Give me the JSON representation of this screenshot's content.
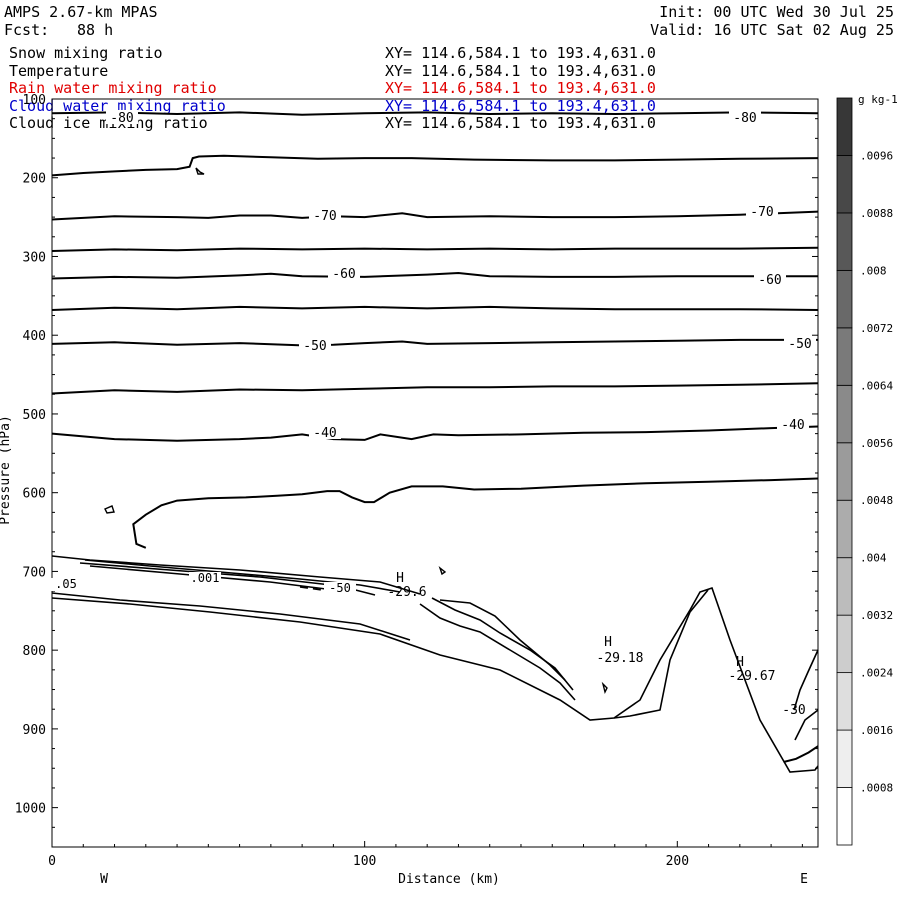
{
  "header": {
    "model": "AMPS 2.67-km MPAS",
    "fcst_label": "Fcst:",
    "fcst_value": "88 h",
    "init": "Init: 00 UTC Wed 30 Jul 25",
    "valid": "Valid: 16 UTC Sat 02 Aug 25"
  },
  "fields": [
    {
      "name": "Snow mixing ratio",
      "xy": "XY= 114.6,584.1 to 193.4,631.0",
      "color": "#000000"
    },
    {
      "name": "Temperature",
      "xy": "XY= 114.6,584.1 to 193.4,631.0",
      "color": "#000000"
    },
    {
      "name": "Rain water mixing ratio",
      "xy": "XY= 114.6,584.1 to 193.4,631.0",
      "color": "#e00000"
    },
    {
      "name": "Cloud water mixing ratio",
      "xy": "XY= 114.6,584.1 to 193.4,631.0",
      "color": "#0000cc"
    },
    {
      "name": "Cloud ice mixing ratio",
      "xy": "XY= 114.6,584.1 to 193.4,631.0",
      "color": "#000000"
    }
  ],
  "chart_data": {
    "type": "contour cross-section",
    "xlabel": "Distance (km)",
    "ylabel": "Pressure (hPa)",
    "xlim": [
      0,
      245
    ],
    "ylim": [
      1050,
      100
    ],
    "x_ticks": [
      0,
      100,
      200
    ],
    "y_ticks": [
      100,
      200,
      300,
      400,
      500,
      600,
      700,
      800,
      900,
      1000
    ],
    "left_end": "W",
    "right_end": "E",
    "temperature_contours": [
      {
        "value": -80,
        "labels": [
          "-80",
          "-80"
        ],
        "points": [
          [
            0,
            118
          ],
          [
            20,
            117
          ],
          [
            40,
            119
          ],
          [
            60,
            117
          ],
          [
            80,
            120
          ],
          [
            100,
            118
          ],
          [
            120,
            117
          ],
          [
            140,
            119
          ],
          [
            160,
            118
          ],
          [
            180,
            119
          ],
          [
            200,
            118
          ],
          [
            220,
            117
          ],
          [
            245,
            118
          ]
        ]
      },
      {
        "value": -75,
        "labels": [],
        "points": [
          [
            0,
            197
          ],
          [
            10,
            194
          ],
          [
            20,
            192
          ],
          [
            30,
            190
          ],
          [
            40,
            189
          ],
          [
            44,
            186
          ],
          [
            45,
            175
          ],
          [
            47,
            173
          ],
          [
            55,
            172
          ],
          [
            70,
            174
          ],
          [
            85,
            176
          ],
          [
            100,
            175
          ],
          [
            115,
            175
          ],
          [
            135,
            177
          ],
          [
            160,
            178
          ],
          [
            180,
            178
          ],
          [
            200,
            177
          ],
          [
            220,
            176
          ],
          [
            245,
            175
          ]
        ]
      },
      {
        "value": -70,
        "labels": [
          "-70",
          "-70"
        ],
        "points": [
          [
            0,
            253
          ],
          [
            20,
            249
          ],
          [
            40,
            250
          ],
          [
            50,
            251
          ],
          [
            60,
            248
          ],
          [
            70,
            248
          ],
          [
            80,
            251
          ],
          [
            90,
            249
          ],
          [
            100,
            250
          ],
          [
            112,
            245
          ],
          [
            120,
            250
          ],
          [
            140,
            249
          ],
          [
            160,
            250
          ],
          [
            180,
            250
          ],
          [
            200,
            249
          ],
          [
            220,
            247
          ],
          [
            245,
            243
          ]
        ]
      },
      {
        "value": -65,
        "labels": [],
        "points": [
          [
            0,
            293
          ],
          [
            20,
            291
          ],
          [
            40,
            292
          ],
          [
            60,
            290
          ],
          [
            80,
            291
          ],
          [
            100,
            290
          ],
          [
            120,
            291
          ],
          [
            140,
            290
          ],
          [
            160,
            291
          ],
          [
            180,
            290
          ],
          [
            200,
            290
          ],
          [
            220,
            290
          ],
          [
            245,
            289
          ]
        ]
      },
      {
        "value": -60,
        "labels": [
          "-60",
          "-60"
        ],
        "points": [
          [
            0,
            328
          ],
          [
            20,
            326
          ],
          [
            40,
            327
          ],
          [
            60,
            324
          ],
          [
            70,
            322
          ],
          [
            80,
            325
          ],
          [
            100,
            326
          ],
          [
            120,
            323
          ],
          [
            130,
            321
          ],
          [
            140,
            325
          ],
          [
            160,
            326
          ],
          [
            180,
            326
          ],
          [
            200,
            325
          ],
          [
            220,
            325
          ],
          [
            245,
            325
          ]
        ]
      },
      {
        "value": -55,
        "labels": [],
        "points": [
          [
            0,
            368
          ],
          [
            20,
            365
          ],
          [
            40,
            367
          ],
          [
            60,
            364
          ],
          [
            80,
            366
          ],
          [
            100,
            364
          ],
          [
            120,
            366
          ],
          [
            140,
            364
          ],
          [
            160,
            366
          ],
          [
            180,
            367
          ],
          [
            200,
            367
          ],
          [
            220,
            367
          ],
          [
            245,
            368
          ]
        ]
      },
      {
        "value": -50,
        "labels": [
          "-50",
          "-50"
        ],
        "points": [
          [
            0,
            411
          ],
          [
            20,
            409
          ],
          [
            40,
            412
          ],
          [
            60,
            410
          ],
          [
            80,
            413
          ],
          [
            90,
            412
          ],
          [
            100,
            410
          ],
          [
            112,
            408
          ],
          [
            120,
            411
          ],
          [
            140,
            410
          ],
          [
            160,
            409
          ],
          [
            180,
            408
          ],
          [
            200,
            407
          ],
          [
            220,
            406
          ],
          [
            245,
            406
          ]
        ]
      },
      {
        "value": -45,
        "labels": [],
        "points": [
          [
            0,
            474
          ],
          [
            20,
            470
          ],
          [
            40,
            472
          ],
          [
            60,
            469
          ],
          [
            80,
            470
          ],
          [
            100,
            468
          ],
          [
            120,
            466
          ],
          [
            140,
            466
          ],
          [
            160,
            465
          ],
          [
            180,
            465
          ],
          [
            200,
            464
          ],
          [
            220,
            463
          ],
          [
            245,
            461
          ]
        ]
      },
      {
        "value": -40,
        "labels": [
          "-40",
          "-40"
        ],
        "points": [
          [
            0,
            525
          ],
          [
            20,
            532
          ],
          [
            40,
            534
          ],
          [
            60,
            532
          ],
          [
            70,
            530
          ],
          [
            80,
            526
          ],
          [
            90,
            532
          ],
          [
            100,
            533
          ],
          [
            105,
            526
          ],
          [
            115,
            532
          ],
          [
            122,
            526
          ],
          [
            130,
            527
          ],
          [
            150,
            526
          ],
          [
            170,
            524
          ],
          [
            190,
            523
          ],
          [
            210,
            521
          ],
          [
            230,
            518
          ],
          [
            245,
            516
          ]
        ]
      },
      {
        "value": -35,
        "labels": [],
        "points": [
          [
            30,
            670
          ],
          [
            27,
            665
          ],
          [
            26,
            640
          ],
          [
            30,
            628
          ],
          [
            35,
            616
          ],
          [
            40,
            610
          ],
          [
            50,
            607
          ],
          [
            62,
            606
          ],
          [
            72,
            604
          ],
          [
            80,
            602
          ],
          [
            88,
            598
          ],
          [
            92,
            598
          ],
          [
            96,
            606
          ],
          [
            100,
            612
          ],
          [
            103,
            612
          ],
          [
            108,
            600
          ],
          [
            115,
            592
          ],
          [
            125,
            592
          ],
          [
            135,
            596
          ],
          [
            150,
            595
          ],
          [
            170,
            591
          ],
          [
            190,
            588
          ],
          [
            210,
            586
          ],
          [
            230,
            584
          ],
          [
            245,
            582
          ]
        ]
      },
      {
        "value": -30,
        "labels": [
          "-30"
        ],
        "points": [
          [
            234,
            942
          ],
          [
            238,
            938
          ],
          [
            242,
            930
          ],
          [
            245,
            922
          ]
        ]
      }
    ],
    "highs": [
      {
        "symbol": "H",
        "value": "-29.6"
      },
      {
        "symbol": "H",
        "value": "-29.18"
      },
      {
        "symbol": "H",
        "value": "-29.67"
      }
    ],
    "other_labels": [
      ".05",
      ".001",
      "-50"
    ],
    "colorbar": {
      "unit": "g kg-1",
      "tick_values": [
        0.0008,
        0.0016,
        0.0024,
        0.0032,
        0.004,
        0.0048,
        0.0056,
        0.0064,
        0.0072,
        0.008,
        0.0088,
        0.0096
      ],
      "tick_labels": [
        ".0008",
        ".0016",
        ".0024",
        ".0032",
        ".004",
        ".0048",
        ".0056",
        ".0064",
        ".0072",
        ".008",
        ".0088",
        ".0096"
      ]
    }
  }
}
